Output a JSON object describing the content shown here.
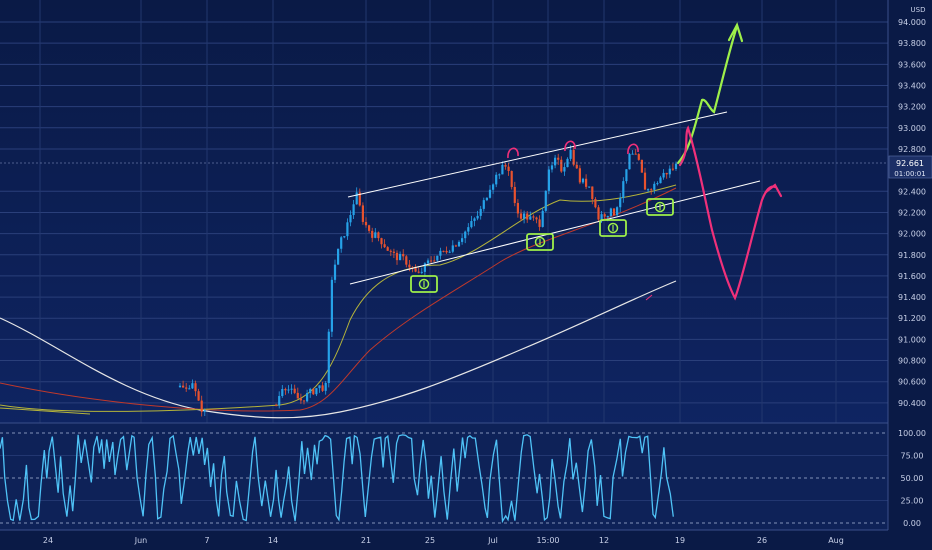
{
  "chart_data": {
    "type": "candlestick",
    "currency": "USD",
    "current_price": {
      "value": "92.661",
      "countdown": "01:00:01"
    },
    "price_axis_ticks": [
      "94.000",
      "93.800",
      "93.600",
      "93.400",
      "93.200",
      "93.000",
      "92.800",
      "92.400",
      "92.200",
      "92.000",
      "91.800",
      "91.600",
      "91.400",
      "91.200",
      "91.000",
      "90.800",
      "90.600",
      "90.400"
    ],
    "price_axis_values": [
      94.0,
      93.8,
      93.6,
      93.4,
      93.2,
      93.0,
      92.8,
      92.4,
      92.2,
      92.0,
      91.8,
      91.6,
      91.4,
      91.2,
      91.0,
      90.8,
      90.6,
      90.4
    ],
    "oscillator_ticks": [
      "100.00",
      "75.00",
      "50.00",
      "25.00",
      "0.00"
    ],
    "oscillator_values": [
      100,
      75,
      50,
      25,
      0
    ],
    "time_axis_ticks": [
      "24",
      "Jun",
      "7",
      "14",
      "21",
      "25",
      "Jul",
      "15:00",
      "12",
      "19",
      "26",
      "Aug"
    ],
    "colors": {
      "bull": "#26a2e8",
      "bear": "#e8522e",
      "channel": "#ffffff",
      "bull_path": "#9ef04a",
      "bear_path": "#f0307a",
      "oscillator": "#4fc3f7",
      "ma_yellow": "#b5b43a",
      "ma_red": "#c0392b",
      "ma_white": "#e6e6e6"
    },
    "projections": [
      "bullish-breakout-arrow",
      "bearish-reversal-arrow"
    ],
    "markers": [
      "dollar-icon",
      "dollar-icon",
      "dollar-icon",
      "dollar-icon"
    ]
  }
}
